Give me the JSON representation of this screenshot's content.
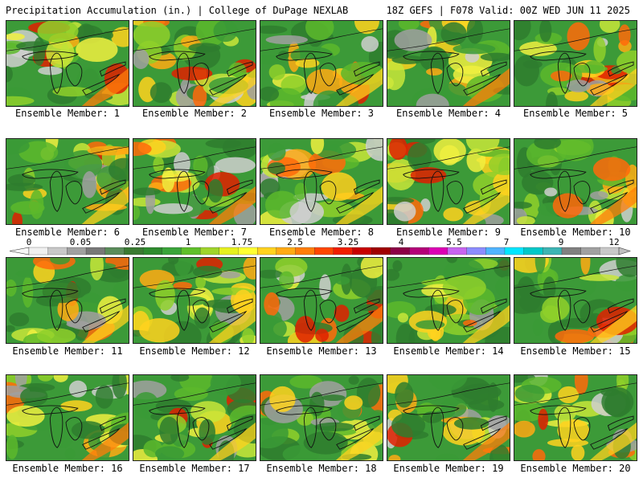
{
  "header": {
    "left_title": "Precipitation Accumulation (in.) | College of DuPage NEXLAB",
    "right_title": "18Z GEFS | F078 Valid: 00Z WED JUN 11 2025"
  },
  "members": [
    {
      "label": "Ensemble Member: 1"
    },
    {
      "label": "Ensemble Member: 2"
    },
    {
      "label": "Ensemble Member: 3"
    },
    {
      "label": "Ensemble Member: 4"
    },
    {
      "label": "Ensemble Member: 5"
    },
    {
      "label": "Ensemble Member: 6"
    },
    {
      "label": "Ensemble Member: 7"
    },
    {
      "label": "Ensemble Member: 8"
    },
    {
      "label": "Ensemble Member: 9"
    },
    {
      "label": "Ensemble Member: 10"
    },
    {
      "label": "Ensemble Member: 11"
    },
    {
      "label": "Ensemble Member: 12"
    },
    {
      "label": "Ensemble Member: 13"
    },
    {
      "label": "Ensemble Member: 14"
    },
    {
      "label": "Ensemble Member: 15"
    },
    {
      "label": "Ensemble Member: 16"
    },
    {
      "label": "Ensemble Member: 17"
    },
    {
      "label": "Ensemble Member: 18"
    },
    {
      "label": "Ensemble Member: 19"
    },
    {
      "label": "Ensemble Member: 20"
    }
  ],
  "colorbar": {
    "tick_labels": [
      "0",
      "0.05",
      "0.25",
      "1",
      "1.75",
      "2.5",
      "3.25",
      "4",
      "5.5",
      "7",
      "9",
      "12"
    ],
    "colors": [
      "#f0f0f0",
      "#c8c8c8",
      "#a0a0a0",
      "#787878",
      "#5a8c5a",
      "#3a7a32",
      "#2e8b2e",
      "#3aa43a",
      "#5fbf2a",
      "#9fd42a",
      "#e6f01e",
      "#ffff32",
      "#ffd21e",
      "#ffaa14",
      "#ff7d0a",
      "#ff4600",
      "#f01e00",
      "#c80000",
      "#a00000",
      "#8c0046",
      "#b40078",
      "#dc00b4",
      "#c864f0",
      "#8c8cff",
      "#50b4ff",
      "#00e6ff",
      "#00c8c8",
      "#3cb4b4",
      "#808080",
      "#a0a0a0",
      "#c8c8c8"
    ]
  }
}
